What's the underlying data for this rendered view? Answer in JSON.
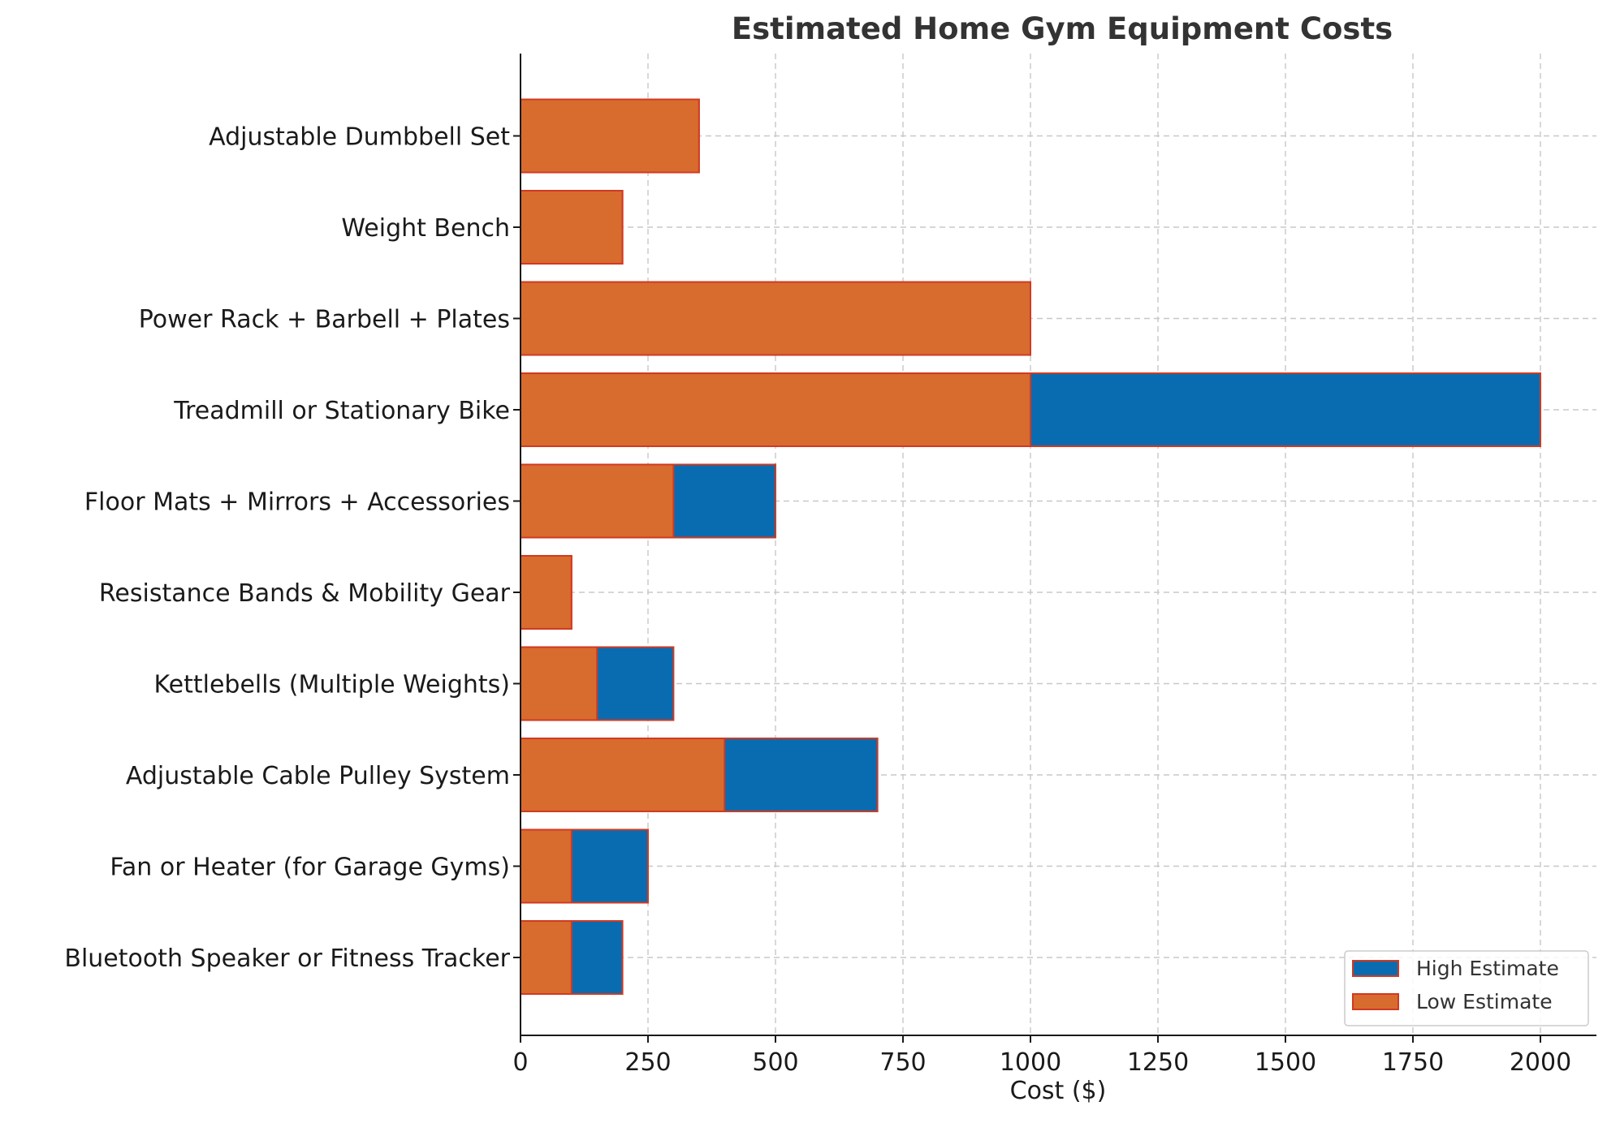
{
  "chart_data": {
    "type": "bar",
    "orientation": "horizontal",
    "stacked": "overlay",
    "title": "Estimated Home Gym Equipment Costs",
    "xlabel": "Cost ($)",
    "ylabel": "",
    "xlim": [
      0,
      2100
    ],
    "xticks": [
      0,
      250,
      500,
      750,
      1000,
      1250,
      1500,
      1750,
      2000
    ],
    "xtick_labels": [
      "0",
      "250",
      "500",
      "750",
      "1000",
      "1250",
      "1500",
      "1750",
      "2000"
    ],
    "grid": true,
    "legend_position": "lower-right",
    "categories": [
      "Adjustable Dumbbell Set",
      "Weight Bench",
      "Power Rack + Barbell + Plates",
      "Treadmill or Stationary Bike",
      "Floor Mats + Mirrors + Accessories",
      "Resistance Bands & Mobility Gear",
      "Kettlebells (Multiple Weights)",
      "Adjustable Cable Pulley System",
      "Fan or Heater (for Garage Gyms)",
      "Bluetooth Speaker or Fitness Tracker"
    ],
    "series": [
      {
        "name": "High Estimate",
        "color": "#0a6cb0",
        "values": [
          350,
          200,
          1000,
          2000,
          500,
          100,
          300,
          700,
          250,
          200
        ]
      },
      {
        "name": "Low Estimate",
        "color": "#d86b2e",
        "values": [
          350,
          200,
          1000,
          1000,
          300,
          100,
          150,
          400,
          100,
          100
        ]
      }
    ],
    "edge_color": "#d03a22"
  }
}
